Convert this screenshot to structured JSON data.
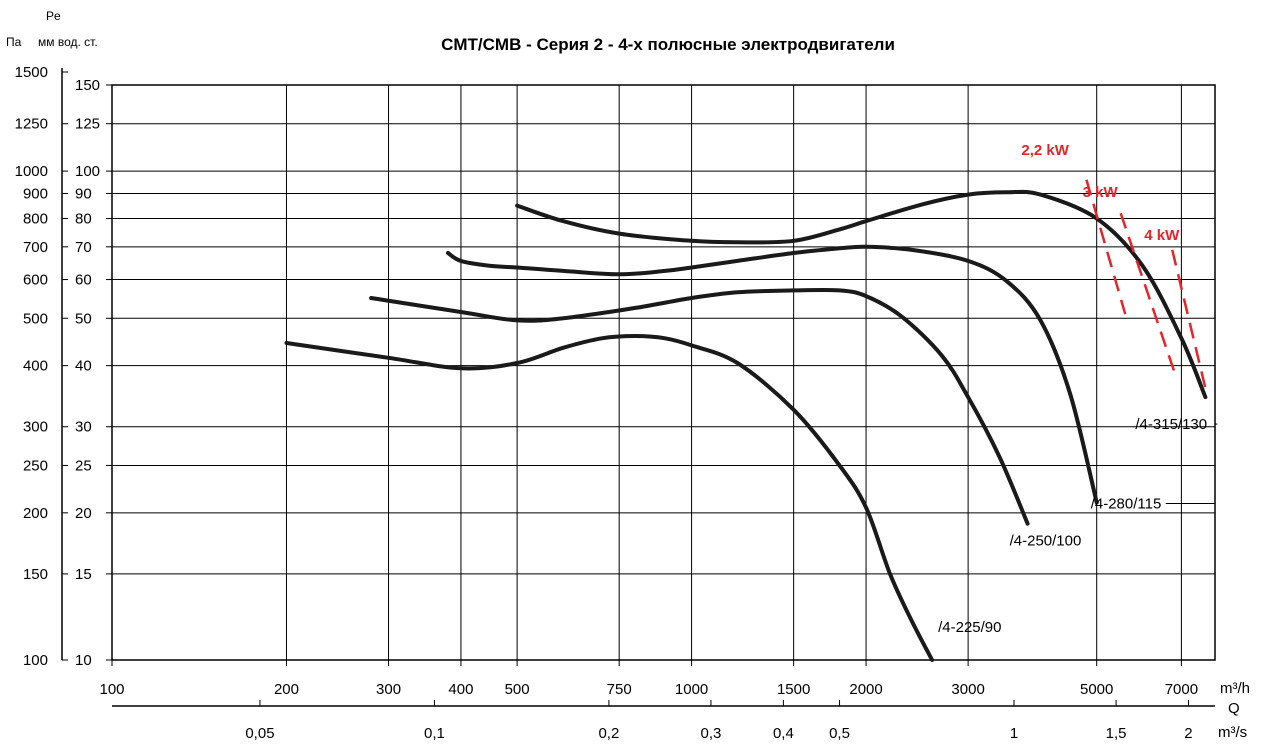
{
  "chart_data": {
    "type": "line",
    "title": "CMT/CMB  -  Серия 2  -  4-х полюсные электродвигатели",
    "y_left_label": "Па",
    "y_right_label_top": "Pe",
    "y_right_label": "мм вод. ст.",
    "x_unit_top": "m³/h",
    "x_axis_label": "Q",
    "x_unit_bottom": "m³/s",
    "x_scale": "log",
    "y_scale": "log",
    "xlim": [
      100,
      8000
    ],
    "ylim": [
      10,
      150
    ],
    "x_ticks": [
      100,
      200,
      300,
      400,
      500,
      750,
      1000,
      1500,
      2000,
      3000,
      5000,
      7000
    ],
    "x_tick_labels": [
      "100",
      "200",
      "300",
      "400",
      "500",
      "750",
      "1000",
      "1500",
      "2000",
      "3000",
      "5000",
      "7000"
    ],
    "x2_ticks": [
      180,
      360,
      720,
      1080,
      1440,
      1800,
      3600,
      5400,
      7200
    ],
    "x2_tick_labels": [
      "0,05",
      "0,1",
      "0,2",
      "0,3",
      "0,4",
      "0,5",
      "1",
      "1,5",
      "2"
    ],
    "y_ticks": [
      10,
      15,
      20,
      25,
      30,
      40,
      50,
      60,
      70,
      80,
      90,
      100,
      125,
      150
    ],
    "y_tick_labels": [
      "10",
      "15",
      "20",
      "25",
      "30",
      "40",
      "50",
      "60",
      "70",
      "80",
      "90",
      "100",
      "125",
      "150"
    ],
    "y2_ticks": [
      10,
      15,
      20,
      25,
      30,
      40,
      50,
      60,
      70,
      80,
      90,
      100,
      125,
      150
    ],
    "y2_tick_labels": [
      "100",
      "150",
      "200",
      "250",
      "300",
      "400",
      "500",
      "600",
      "700",
      "800",
      "900",
      "1000",
      "1250",
      "1500"
    ],
    "grid": true,
    "series": [
      {
        "name": "/4-225/90",
        "x": [
          200,
          300,
          400,
          500,
          600,
          700,
          800,
          900,
          1000,
          1200,
          1500,
          1800,
          2000,
          2200,
          2400,
          2600
        ],
        "y": [
          44.5,
          41.5,
          39.5,
          40.5,
          43.5,
          45.5,
          46,
          45.5,
          44,
          40.5,
          32.5,
          25,
          20.5,
          15,
          12,
          10
        ]
      },
      {
        "name": "/4-250/100",
        "x": [
          280,
          400,
          500,
          600,
          800,
          1000,
          1200,
          1500,
          1800,
          2000,
          2300,
          2700,
          3000,
          3400,
          3800
        ],
        "y": [
          55,
          51.5,
          49.5,
          50,
          52.5,
          55,
          56.5,
          57,
          57,
          55.5,
          50.5,
          42,
          34.5,
          26,
          19
        ]
      },
      {
        "name": "/4-280/115",
        "x": [
          380,
          400,
          450,
          500,
          600,
          750,
          900,
          1000,
          1200,
          1500,
          1800,
          2000,
          2400,
          3000,
          3500,
          4000,
          4500,
          5000
        ],
        "y": [
          68,
          65.5,
          64,
          63.5,
          62.5,
          61.5,
          62.5,
          63.5,
          65.5,
          68,
          69.5,
          70,
          69,
          65.5,
          59.5,
          49.5,
          35,
          21
        ]
      },
      {
        "name": "/4-315/130",
        "x": [
          500,
          600,
          750,
          1000,
          1200,
          1500,
          1800,
          2000,
          2500,
          3000,
          3500,
          4000,
          5000,
          6000,
          7000,
          7700
        ],
        "y": [
          85,
          79,
          74.5,
          72,
          71.5,
          72,
          76,
          79,
          85.5,
          89.5,
          90.5,
          89.5,
          80,
          64,
          45.5,
          34.5
        ]
      }
    ],
    "power_lines": [
      {
        "name": "2,2 kW",
        "x": [
          4800,
          5600
        ],
        "y": [
          96,
          51
        ]
      },
      {
        "name": "3 kW",
        "x": [
          5500,
          6850
        ],
        "y": [
          82,
          38
        ]
      },
      {
        "name": "4 kW",
        "x": [
          6750,
          7700
        ],
        "y": [
          69,
          36
        ]
      }
    ]
  }
}
